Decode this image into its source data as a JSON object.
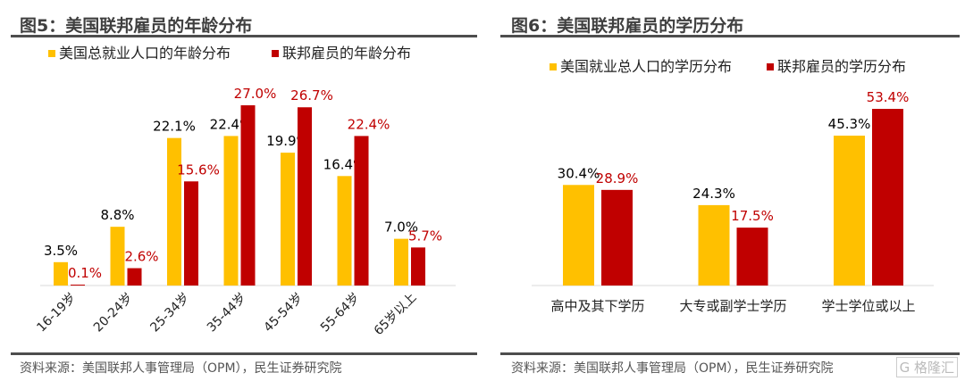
{
  "colors": {
    "yellow": "#FFC000",
    "red": "#C00000",
    "label_red": "#C00000",
    "label_black": "#000000"
  },
  "watermark": "格隆汇",
  "chart_data": [
    {
      "type": "bar",
      "title": "图5：美国联邦雇员的年龄分布",
      "source": "资料来源：美国联邦人事管理局（OPM），民生证券研究院",
      "categories": [
        "16-19岁",
        "20-24岁",
        "25-34岁",
        "35-44岁",
        "45-54岁",
        "55-64岁",
        "65岁以上"
      ],
      "series": [
        {
          "name": "美国总就业人口的年龄分布",
          "values": [
            3.5,
            8.8,
            22.1,
            22.4,
            19.9,
            16.4,
            7.0
          ],
          "labels": [
            "3.5%",
            "8.8%",
            "22.1%",
            "22.4%",
            "19.9%",
            "16.4%",
            "7.0%"
          ]
        },
        {
          "name": "联邦雇员的年龄分布",
          "values": [
            0.1,
            2.6,
            15.6,
            27.0,
            26.7,
            22.4,
            5.7
          ],
          "labels": [
            "0.1%",
            "2.6%",
            "15.6%",
            "27.0%",
            "26.7%",
            "22.4%",
            "5.7%"
          ]
        }
      ],
      "legend": "top",
      "ylim": [
        0,
        27
      ]
    },
    {
      "type": "bar",
      "title": "图6：美国联邦雇员的学历分布",
      "source": "资料来源：美国联邦人事管理局（OPM），民生证券研究院",
      "categories": [
        "高中及其下学历",
        "大专或副学士学历",
        "学士学位或以上"
      ],
      "series": [
        {
          "name": "美国就业总人口的学历分布",
          "values": [
            30.4,
            24.3,
            45.3
          ],
          "labels": [
            "30.4%",
            "24.3%",
            "45.3%"
          ]
        },
        {
          "name": "联邦雇员的学历分布",
          "values": [
            28.9,
            17.5,
            53.4
          ],
          "labels": [
            "28.9%",
            "17.5%",
            "53.4%"
          ]
        }
      ],
      "legend": "top",
      "ylim": [
        0,
        53.4
      ]
    }
  ]
}
